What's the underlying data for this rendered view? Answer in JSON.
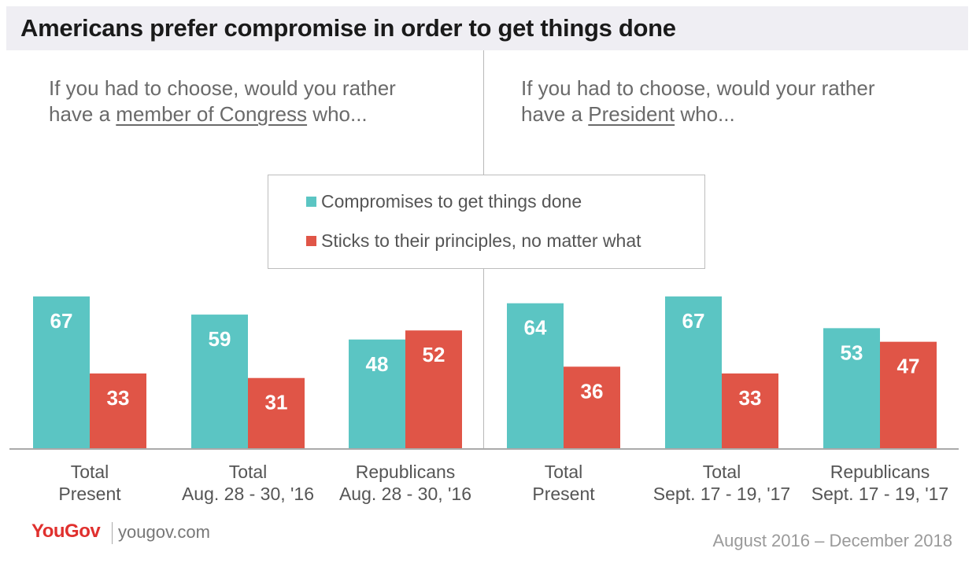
{
  "title": "Americans prefer compromise in order to get things done",
  "questions": {
    "left": {
      "line1": "If you had to choose, would you rather",
      "line2_pre": "have a ",
      "line2_underlined": "member of Congress",
      "line2_post": " who..."
    },
    "right": {
      "line1": "If you had to choose, would your rather",
      "line2_pre": "have a ",
      "line2_underlined": "President",
      "line2_post": " who..."
    }
  },
  "colors": {
    "compromise": "#5bc5c3",
    "principles": "#e05547",
    "axis": "#aaaaaa"
  },
  "chart_data": {
    "type": "bar",
    "series": [
      {
        "name": "Compromises to get things done",
        "values": [
          67,
          59,
          48,
          64,
          67,
          53
        ]
      },
      {
        "name": "Sticks to their principles, no matter what",
        "values": [
          33,
          31,
          52,
          36,
          33,
          47
        ]
      }
    ],
    "categories": [
      [
        "Total",
        "Present"
      ],
      [
        "Total",
        "Aug. 28 - 30, '16"
      ],
      [
        "Republicans",
        "Aug. 28 - 30, '16"
      ],
      [
        "Total",
        "Present"
      ],
      [
        "Total",
        "Sept. 17 - 19, '17"
      ],
      [
        "Republicans",
        "Sept. 17 - 19, '17"
      ]
    ],
    "panels": [
      "member of Congress",
      "President"
    ],
    "ylim": [
      0,
      100
    ],
    "legend": "center"
  },
  "footer": {
    "brand": "YouGov",
    "site": "yougov.com",
    "date_range": "August 2016 – December 2018"
  }
}
